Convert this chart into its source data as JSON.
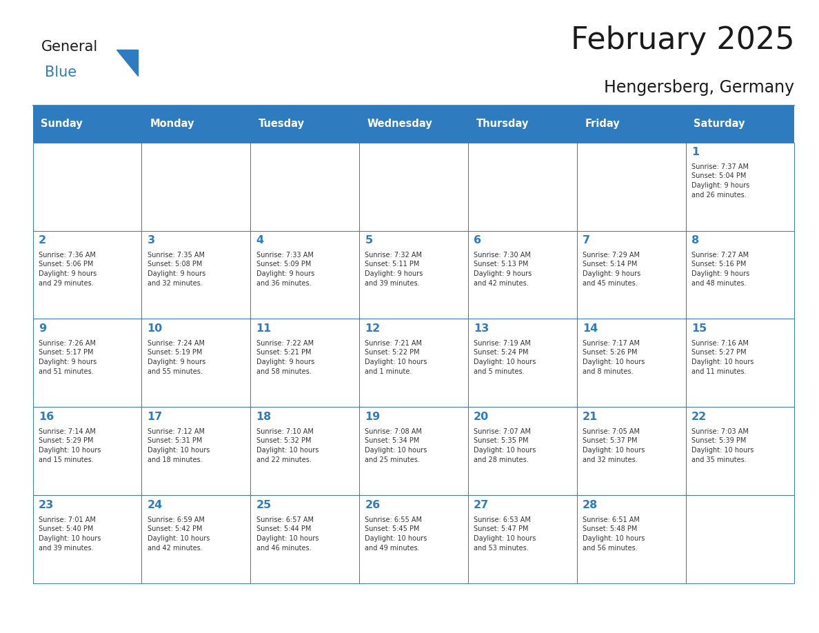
{
  "title": "February 2025",
  "subtitle": "Hengersberg, Germany",
  "days_of_week": [
    "Sunday",
    "Monday",
    "Tuesday",
    "Wednesday",
    "Thursday",
    "Friday",
    "Saturday"
  ],
  "header_bg": "#2E7BBF",
  "header_text": "#FFFFFF",
  "cell_bg": "#FFFFFF",
  "border_color": "#2E7BBF",
  "title_color": "#1a1a1a",
  "subtitle_color": "#1a1a1a",
  "day_num_color": "#2E7BBF",
  "info_color": "#333333",
  "logo_general_color": "#1a1a1a",
  "logo_blue_color": "#2E7BBF",
  "calendar_data": [
    [
      null,
      null,
      null,
      null,
      null,
      null,
      {
        "day": 1,
        "sunrise": "7:37 AM",
        "sunset": "5:04 PM",
        "daylight": "9 hours\nand 26 minutes."
      }
    ],
    [
      {
        "day": 2,
        "sunrise": "7:36 AM",
        "sunset": "5:06 PM",
        "daylight": "9 hours\nand 29 minutes."
      },
      {
        "day": 3,
        "sunrise": "7:35 AM",
        "sunset": "5:08 PM",
        "daylight": "9 hours\nand 32 minutes."
      },
      {
        "day": 4,
        "sunrise": "7:33 AM",
        "sunset": "5:09 PM",
        "daylight": "9 hours\nand 36 minutes."
      },
      {
        "day": 5,
        "sunrise": "7:32 AM",
        "sunset": "5:11 PM",
        "daylight": "9 hours\nand 39 minutes."
      },
      {
        "day": 6,
        "sunrise": "7:30 AM",
        "sunset": "5:13 PM",
        "daylight": "9 hours\nand 42 minutes."
      },
      {
        "day": 7,
        "sunrise": "7:29 AM",
        "sunset": "5:14 PM",
        "daylight": "9 hours\nand 45 minutes."
      },
      {
        "day": 8,
        "sunrise": "7:27 AM",
        "sunset": "5:16 PM",
        "daylight": "9 hours\nand 48 minutes."
      }
    ],
    [
      {
        "day": 9,
        "sunrise": "7:26 AM",
        "sunset": "5:17 PM",
        "daylight": "9 hours\nand 51 minutes."
      },
      {
        "day": 10,
        "sunrise": "7:24 AM",
        "sunset": "5:19 PM",
        "daylight": "9 hours\nand 55 minutes."
      },
      {
        "day": 11,
        "sunrise": "7:22 AM",
        "sunset": "5:21 PM",
        "daylight": "9 hours\nand 58 minutes."
      },
      {
        "day": 12,
        "sunrise": "7:21 AM",
        "sunset": "5:22 PM",
        "daylight": "10 hours\nand 1 minute."
      },
      {
        "day": 13,
        "sunrise": "7:19 AM",
        "sunset": "5:24 PM",
        "daylight": "10 hours\nand 5 minutes."
      },
      {
        "day": 14,
        "sunrise": "7:17 AM",
        "sunset": "5:26 PM",
        "daylight": "10 hours\nand 8 minutes."
      },
      {
        "day": 15,
        "sunrise": "7:16 AM",
        "sunset": "5:27 PM",
        "daylight": "10 hours\nand 11 minutes."
      }
    ],
    [
      {
        "day": 16,
        "sunrise": "7:14 AM",
        "sunset": "5:29 PM",
        "daylight": "10 hours\nand 15 minutes."
      },
      {
        "day": 17,
        "sunrise": "7:12 AM",
        "sunset": "5:31 PM",
        "daylight": "10 hours\nand 18 minutes."
      },
      {
        "day": 18,
        "sunrise": "7:10 AM",
        "sunset": "5:32 PM",
        "daylight": "10 hours\nand 22 minutes."
      },
      {
        "day": 19,
        "sunrise": "7:08 AM",
        "sunset": "5:34 PM",
        "daylight": "10 hours\nand 25 minutes."
      },
      {
        "day": 20,
        "sunrise": "7:07 AM",
        "sunset": "5:35 PM",
        "daylight": "10 hours\nand 28 minutes."
      },
      {
        "day": 21,
        "sunrise": "7:05 AM",
        "sunset": "5:37 PM",
        "daylight": "10 hours\nand 32 minutes."
      },
      {
        "day": 22,
        "sunrise": "7:03 AM",
        "sunset": "5:39 PM",
        "daylight": "10 hours\nand 35 minutes."
      }
    ],
    [
      {
        "day": 23,
        "sunrise": "7:01 AM",
        "sunset": "5:40 PM",
        "daylight": "10 hours\nand 39 minutes."
      },
      {
        "day": 24,
        "sunrise": "6:59 AM",
        "sunset": "5:42 PM",
        "daylight": "10 hours\nand 42 minutes."
      },
      {
        "day": 25,
        "sunrise": "6:57 AM",
        "sunset": "5:44 PM",
        "daylight": "10 hours\nand 46 minutes."
      },
      {
        "day": 26,
        "sunrise": "6:55 AM",
        "sunset": "5:45 PM",
        "daylight": "10 hours\nand 49 minutes."
      },
      {
        "day": 27,
        "sunrise": "6:53 AM",
        "sunset": "5:47 PM",
        "daylight": "10 hours\nand 53 minutes."
      },
      {
        "day": 28,
        "sunrise": "6:51 AM",
        "sunset": "5:48 PM",
        "daylight": "10 hours\nand 56 minutes."
      },
      null
    ]
  ]
}
